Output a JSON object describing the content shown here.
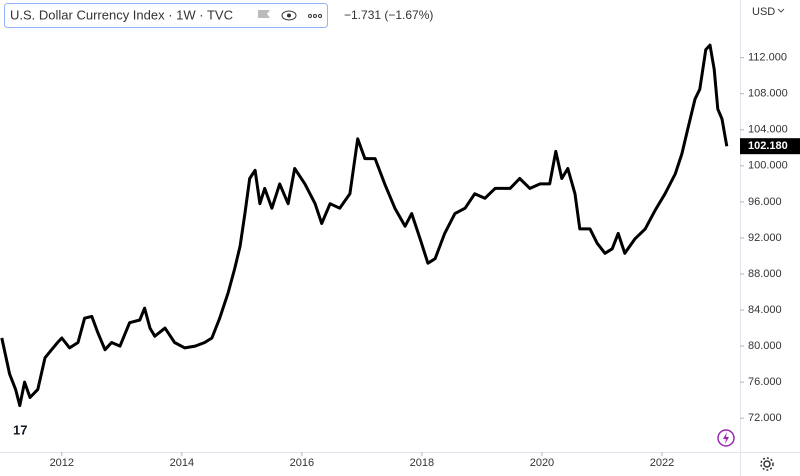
{
  "chart_data": {
    "type": "line",
    "title": "U.S. Dollar Currency Index · 1W · TVC",
    "change": "−1.731 (−1.67%)",
    "currency": "USD",
    "x": [
      2011.0,
      2011.13,
      2011.23,
      2011.3,
      2011.38,
      2011.47,
      2011.6,
      2011.72,
      2011.83,
      2011.93,
      2012.0,
      2012.13,
      2012.27,
      2012.38,
      2012.5,
      2012.6,
      2012.72,
      2012.83,
      2012.97,
      2013.13,
      2013.3,
      2013.38,
      2013.47,
      2013.55,
      2013.72,
      2013.88,
      2014.05,
      2014.22,
      2014.38,
      2014.5,
      2014.63,
      2014.77,
      2014.88,
      2014.97,
      2015.05,
      2015.13,
      2015.22,
      2015.3,
      2015.38,
      2015.5,
      2015.63,
      2015.77,
      2015.88,
      2016.05,
      2016.22,
      2016.33,
      2016.47,
      2016.63,
      2016.8,
      2016.93,
      2017.05,
      2017.22,
      2017.38,
      2017.55,
      2017.72,
      2017.83,
      2017.97,
      2018.1,
      2018.22,
      2018.38,
      2018.55,
      2018.72,
      2018.88,
      2019.05,
      2019.22,
      2019.47,
      2019.63,
      2019.8,
      2019.97,
      2020.13,
      2020.23,
      2020.33,
      2020.43,
      2020.55,
      2020.63,
      2020.8,
      2020.92,
      2021.05,
      2021.17,
      2021.27,
      2021.38,
      2021.55,
      2021.72,
      2021.88,
      2022.05,
      2022.22,
      2022.33,
      2022.43,
      2022.55,
      2022.63,
      2022.73,
      2022.8,
      2022.87,
      2022.93,
      2023.0,
      2023.08
    ],
    "series": [
      {
        "color": "#000000",
        "values": [
          80.9,
          76.9,
          75.2,
          73.4,
          76.0,
          74.3,
          75.2,
          78.7,
          79.6,
          80.4,
          80.9,
          79.8,
          80.4,
          83.1,
          83.3,
          81.5,
          79.6,
          80.4,
          80.0,
          82.6,
          82.9,
          84.2,
          82.0,
          81.1,
          82.0,
          80.4,
          79.8,
          80.0,
          80.4,
          80.9,
          83.1,
          85.9,
          88.6,
          91.1,
          94.7,
          98.6,
          99.5,
          95.8,
          97.5,
          95.3,
          98.0,
          95.8,
          99.7,
          98.0,
          95.8,
          93.6,
          95.8,
          95.3,
          96.9,
          103.0,
          100.8,
          100.8,
          98.0,
          95.3,
          93.3,
          94.7,
          91.9,
          89.2,
          89.7,
          92.5,
          94.7,
          95.3,
          96.9,
          96.4,
          97.5,
          97.5,
          98.6,
          97.5,
          98.0,
          98.0,
          101.6,
          98.6,
          99.7,
          96.9,
          93.0,
          93.0,
          91.4,
          90.3,
          90.8,
          92.5,
          90.3,
          91.9,
          93.0,
          95.0,
          96.9,
          99.1,
          101.3,
          104.1,
          107.4,
          108.5,
          112.9,
          113.4,
          110.7,
          106.3,
          105.2,
          102.18
        ]
      }
    ],
    "last_price": {
      "value": 102.18,
      "label": "102.180"
    },
    "xlim": [
      2010.97,
      2023.3
    ],
    "xticks": [
      2012,
      2014,
      2016,
      2018,
      2020,
      2022
    ],
    "ylim": [
      68.25,
      118.4
    ],
    "yticks": [
      {
        "value": 72,
        "label": "72.000"
      },
      {
        "value": 76,
        "label": "76.000"
      },
      {
        "value": 80,
        "label": "80.000"
      },
      {
        "value": 84,
        "label": "84.000"
      },
      {
        "value": 88,
        "label": "88.000"
      },
      {
        "value": 92,
        "label": "92.000"
      },
      {
        "value": 96,
        "label": "96.000"
      },
      {
        "value": 100,
        "label": "100.000"
      },
      {
        "value": 104,
        "label": "104.000"
      },
      {
        "value": 108,
        "label": "108.000"
      },
      {
        "value": 112,
        "label": "112.000"
      }
    ]
  }
}
